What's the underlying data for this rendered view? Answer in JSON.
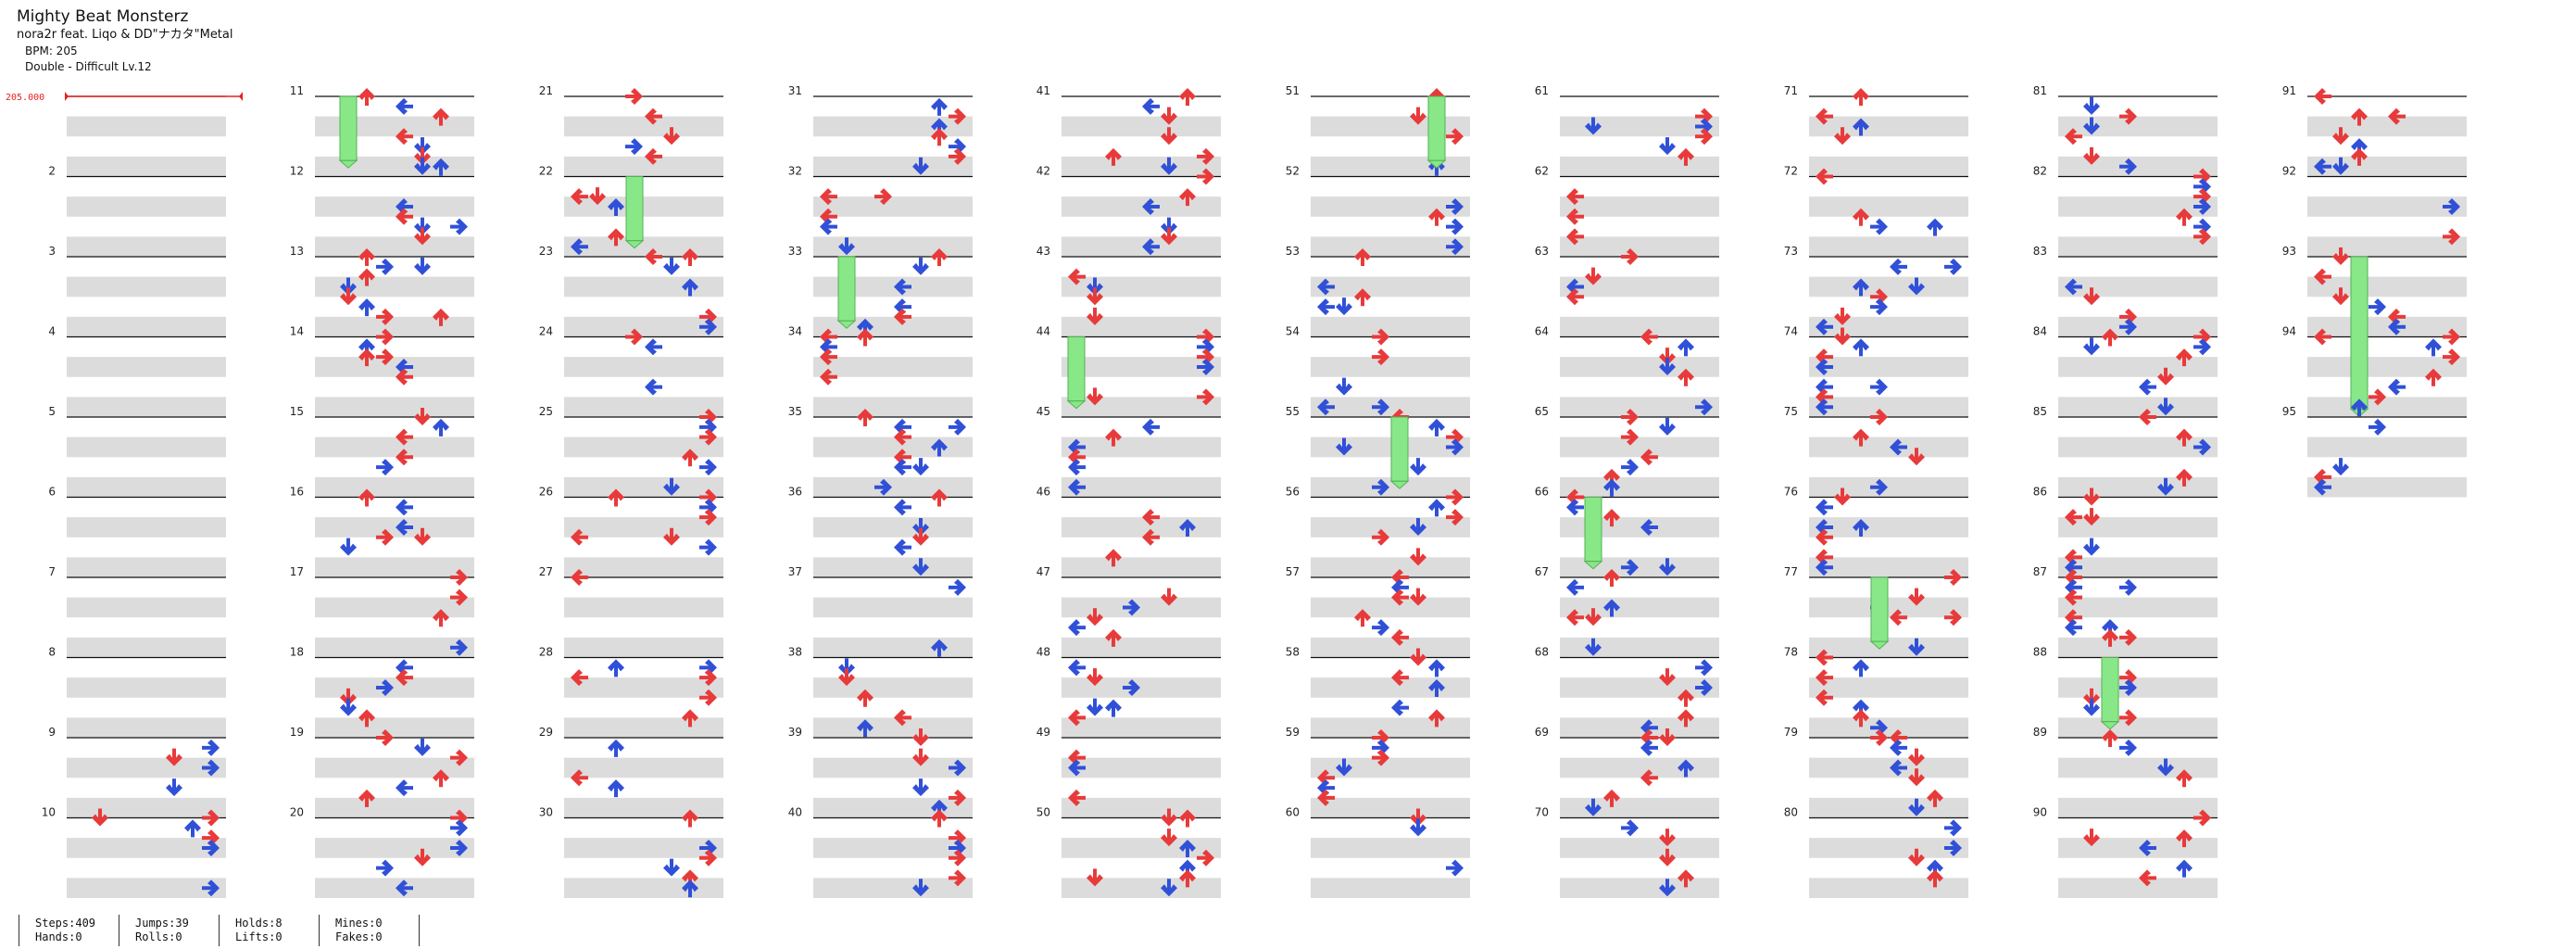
{
  "header": {
    "title": "Mighty Beat Monsterz",
    "artist": "nora2r feat. Liqo & DD\"ナカタ\"Metal",
    "bpm": "BPM: 205",
    "difficulty": "Double - Difficult Lv.12"
  },
  "bpm_marker": "205.000",
  "stats": {
    "steps": "Steps:409",
    "hands": "Hands:0",
    "jumps": "Jumps:39",
    "rolls": "Rolls:0",
    "holds": "Holds:8",
    "lifts": "Lifts:0",
    "mines": "Mines:0",
    "fakes": "Fakes:0"
  },
  "chart_data": {
    "type": "table",
    "mode": "Double",
    "total_measures": 95,
    "measures_per_column": 10,
    "measure_labels_shown": [
      "2",
      "3",
      "4",
      "5",
      "6",
      "7",
      "8",
      "9",
      "10",
      "11",
      "12",
      "13",
      "14",
      "15",
      "16",
      "17",
      "18",
      "19",
      "20",
      "21",
      "22",
      "23",
      "24",
      "25",
      "26",
      "27",
      "28",
      "29",
      "30",
      "31",
      "32",
      "33",
      "34",
      "35",
      "36",
      "37",
      "38",
      "39",
      "40",
      "41",
      "42",
      "43",
      "44",
      "45",
      "46",
      "47",
      "48",
      "49",
      "50",
      "51",
      "52",
      "53",
      "54",
      "55",
      "56",
      "57",
      "58",
      "59",
      "60",
      "61",
      "62",
      "63",
      "64",
      "65",
      "66",
      "67",
      "68",
      "69",
      "70",
      "71",
      "72",
      "73",
      "74",
      "75",
      "76",
      "77",
      "78",
      "79",
      "80",
      "81",
      "82",
      "83",
      "84",
      "85",
      "86",
      "87",
      "88",
      "89",
      "90",
      "91",
      "92",
      "93",
      "94",
      "95"
    ],
    "arrow_colors": {
      "quarter": "#e83a3a",
      "eighth": "#3050d8",
      "hold": "#88e888"
    }
  }
}
